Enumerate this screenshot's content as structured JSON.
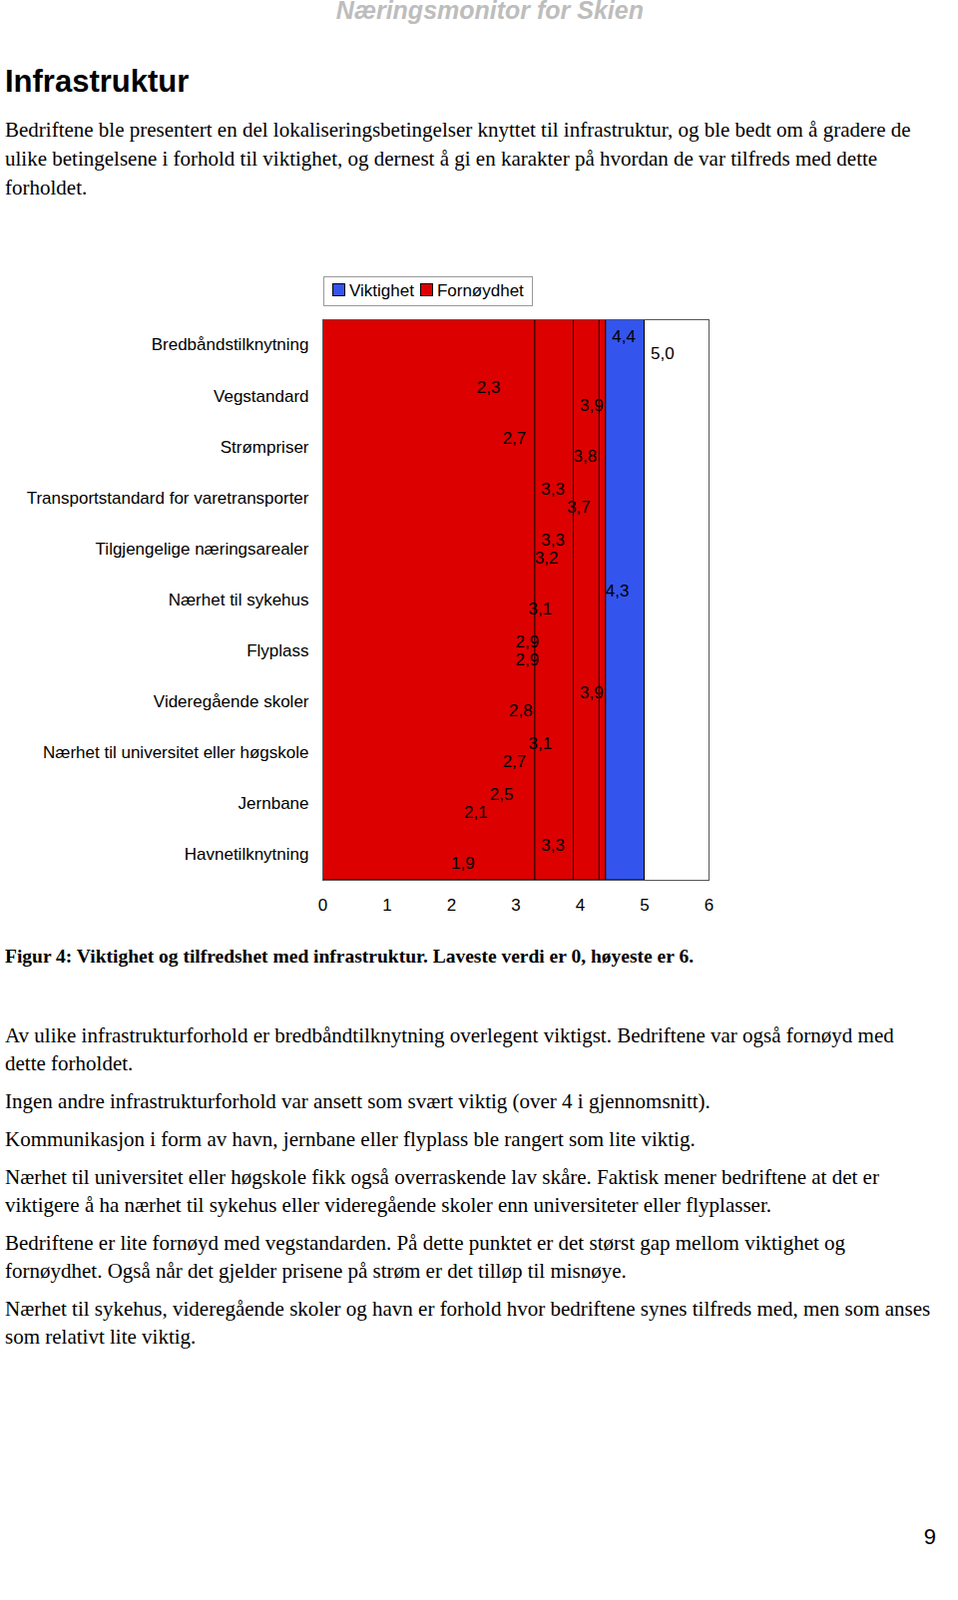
{
  "document": {
    "header": "Næringsmonitor for Skien",
    "title": "Infrastruktur",
    "intro": "Bedriftene ble presentert en del lokaliseringsbetingelser knyttet til infrastruktur, og ble bedt om å gradere de ulike betingelsene i forhold til viktighet, og dernest å gi en karakter på hvordan de var tilfreds med dette forholdet.",
    "caption": "Figur 4: Viktighet og tilfredshet med infrastruktur. Laveste verdi er 0, høyeste er 6.",
    "paragraphs": [
      "Av ulike infrastrukturforhold er bredbåndtilknytning overlegent viktigst. Bedriftene var også fornøyd med dette forholdet.",
      "Ingen andre infrastrukturforhold var ansett som svært viktig (over 4 i gjennomsnitt).",
      "Kommunikasjon i form av havn, jernbane eller flyplass ble rangert som lite viktig.",
      "Nærhet til universitet eller høgskole fikk også overraskende lav skåre. Faktisk mener bedriftene at det er viktigere å ha nærhet til sykehus eller videregående skoler enn universiteter eller flyplasser.",
      "Bedriftene er lite fornøyd med vegstandarden. På dette punktet er det størst gap mellom viktighet og fornøydhet. Også når det gjelder prisene på strøm er det tilløp til misnøye.",
      "Nærhet til sykehus, videregående skoler og havn er forhold hvor bedriftene synes tilfreds med, men som anses som relativt lite viktig."
    ],
    "page_number": "9"
  },
  "chart_data": {
    "type": "bar",
    "orientation": "horizontal",
    "categories": [
      "Bredbåndstilknytning",
      "Vegstandard",
      "Strømpriser",
      "Transportstandard for varetransporter",
      "Tilgjengelige næringsarealer",
      "Nærhet til sykehus",
      "Flyplass",
      "Videregående skoler",
      "Nærhet til universitet eller høgskole",
      "Jernbane",
      "Havnetilknytning"
    ],
    "series": [
      {
        "name": "Viktighet",
        "color": "#3355ee",
        "values": [
          5.0,
          3.9,
          3.8,
          3.7,
          3.2,
          3.1,
          2.9,
          2.8,
          2.7,
          2.1,
          1.9
        ],
        "value_labels": [
          "5,0",
          "3,9",
          "3,8",
          "3,7",
          "3,2",
          "3,1",
          "2,9",
          "2,8",
          "2,7",
          "2,1",
          "1,9"
        ]
      },
      {
        "name": "Fornøydhet",
        "color": "#dd0000",
        "values": [
          4.4,
          2.3,
          2.7,
          3.3,
          3.3,
          4.3,
          2.9,
          3.9,
          3.1,
          2.5,
          3.3
        ],
        "value_labels": [
          "4,4",
          "2,3",
          "2,7",
          "3,3",
          "3,3",
          "4,3",
          "2,9",
          "3,9",
          "3,1",
          "2,5",
          "3,3"
        ]
      }
    ],
    "xlim": [
      0,
      6
    ],
    "xticks": [
      0,
      1,
      2,
      3,
      4,
      5,
      6
    ],
    "grid": false,
    "legend": "top",
    "data_labels": true
  }
}
